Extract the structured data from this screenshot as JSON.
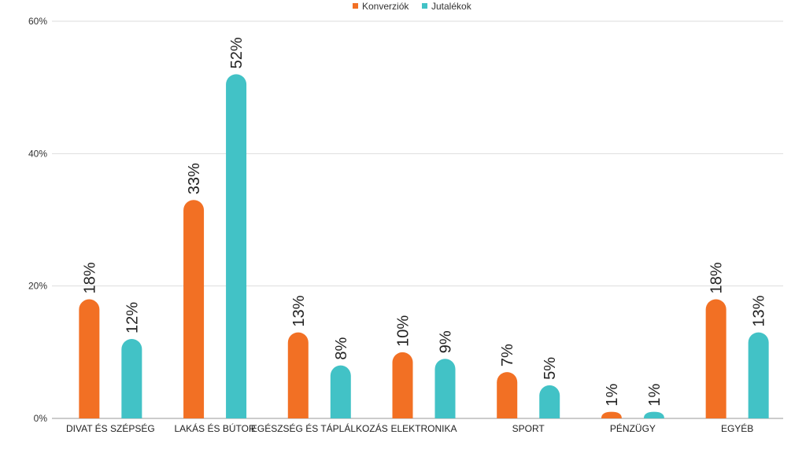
{
  "chart_data": {
    "type": "bar",
    "title": "",
    "xlabel": "",
    "ylabel": "",
    "categories": [
      "DIVAT ÉS SZÉPSÉG",
      "LAKÁS ÉS BÚTOR",
      "EGÉSZSÉG ÉS TÁPLÁLKOZÁS",
      "ELEKTRONIKA",
      "SPORT",
      "PÉNZÜGY",
      "EGYÉB"
    ],
    "series": [
      {
        "name": "Konverziók",
        "color": "#f27024",
        "values": [
          18,
          33,
          13,
          10,
          7,
          1,
          18
        ],
        "labels": [
          "18%",
          "33%",
          "13%",
          "10%",
          "7%",
          "1%",
          "18%"
        ]
      },
      {
        "name": "Jutalékok",
        "color": "#42c2c6",
        "values": [
          12,
          52,
          8,
          9,
          5,
          1,
          13
        ],
        "labels": [
          "12%",
          "52%",
          "8%",
          "9%",
          "5%",
          "1%",
          "13%"
        ]
      }
    ],
    "ylim": [
      0,
      60
    ],
    "yticks": [
      0,
      20,
      40,
      60
    ],
    "ytick_labels": [
      "0%",
      "20%",
      "40%",
      "60%"
    ],
    "grid": true,
    "legend": "top-center"
  }
}
